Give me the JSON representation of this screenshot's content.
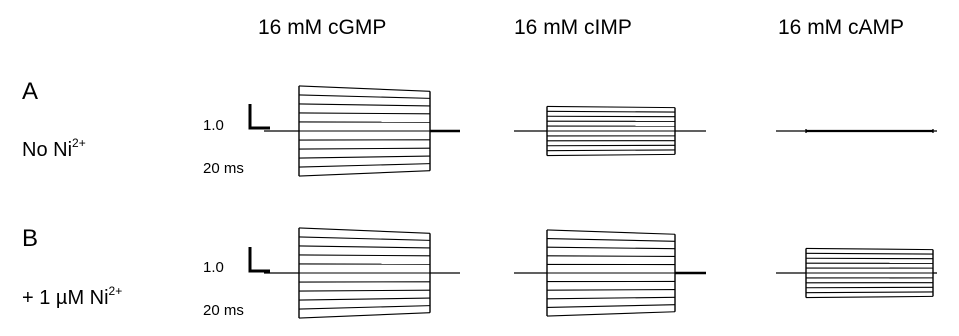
{
  "columns": [
    "16 mM cGMP",
    "16 mM cIMP",
    "16 mM cAMP"
  ],
  "panels": [
    {
      "letter": "A",
      "condition_prefix": "No Ni",
      "condition_superscript": "2+"
    },
    {
      "letter": "B",
      "condition_prefix": "+ 1 µM Ni",
      "condition_superscript": "2+"
    }
  ],
  "scale_bar": {
    "amplitude_label": "1.0",
    "time_label": "20 ms"
  },
  "traces": [
    [
      {
        "column": "16 mM cGMP",
        "up": 11,
        "down": 11,
        "sweeps": 11,
        "droop": 0.12,
        "tail": "thick"
      },
      {
        "column": "16 mM cIMP",
        "up": 6,
        "down": 6,
        "sweeps": 11,
        "droop": 0.05,
        "tail": "thin"
      },
      {
        "column": "16 mM cAMP",
        "up": 0.3,
        "down": 0.3,
        "sweeps": 3,
        "droop": 0,
        "tail": "thin"
      }
    ],
    [
      {
        "column": "16 mM cGMP",
        "up": 11,
        "down": 11,
        "sweeps": 11,
        "droop": 0.12,
        "tail": "thin"
      },
      {
        "column": "16 mM cIMP",
        "up": 10.5,
        "down": 10.5,
        "sweeps": 11,
        "droop": 0.1,
        "tail": "thick"
      },
      {
        "column": "16 mM cAMP",
        "up": 6,
        "down": 6,
        "sweeps": 11,
        "droop": 0.05,
        "tail": "thin"
      }
    ]
  ],
  "colors": {
    "ink": "#000000",
    "background": "#ffffff"
  }
}
